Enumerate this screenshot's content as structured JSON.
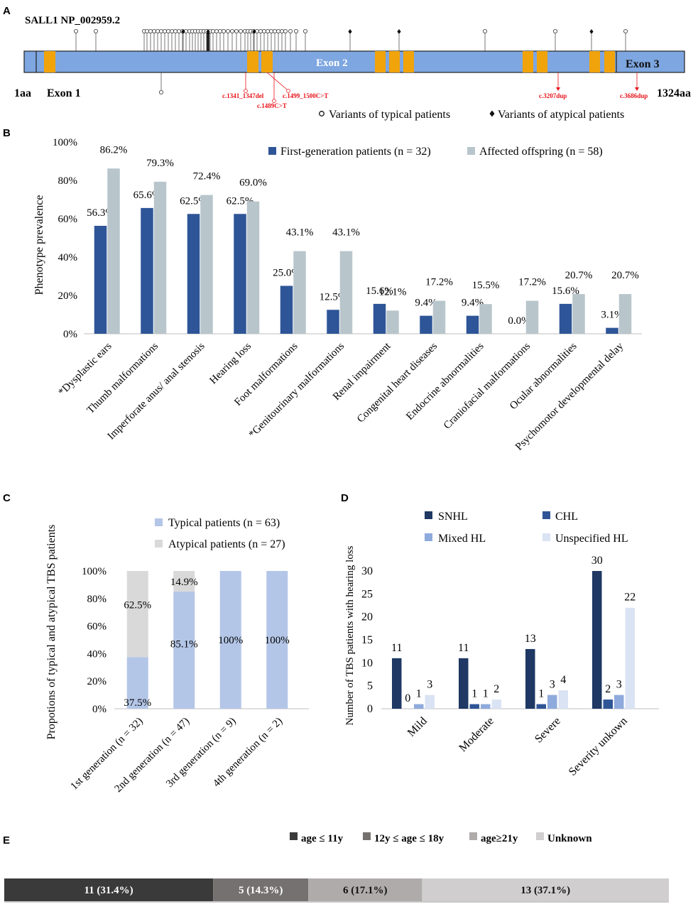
{
  "panels": {
    "a": {
      "letter": "A",
      "gene_label": "SALL1  NP_002959.2",
      "start_label": "1aa",
      "end_label": "1324aa",
      "exon_labels": [
        "Exon 1",
        "Exon 2",
        "Exon 3"
      ],
      "mutation_labels": [
        "c.1341_1347del",
        "c.1489C>T",
        "c.1499_1500C>T",
        "c.3207dup",
        "c.3686dup"
      ],
      "legend": {
        "typical": "Variants of typical patients",
        "atypical": "Variants of atypical patients"
      },
      "colors": {
        "protein": "#7ea6e0",
        "domain": "#f0a30a",
        "mutation": "#e8131a"
      }
    },
    "b": {
      "letter": "B",
      "ylabel": "Phenotype prevalence",
      "ticks": [
        "0%",
        "20%",
        "40%",
        "60%",
        "80%",
        "100%"
      ],
      "legend": [
        "First-generation patients (n = 32)",
        "Affected offspring (n = 58)"
      ],
      "colors": [
        "#2e5597",
        "#b8c6cc"
      ]
    },
    "c": {
      "letter": "C",
      "ylabel": "Propotions of typical and atypical TBS patients",
      "ticks": [
        "0%",
        "20%",
        "40%",
        "60%",
        "80%",
        "100%"
      ],
      "legend": [
        "Typical patients (n = 63)",
        "Atypical patients (n = 27)"
      ],
      "colors": [
        "#b4c6e7",
        "#d9d9d9"
      ]
    },
    "d": {
      "letter": "D",
      "ylabel": "Number of TBS patients with  hearing loss",
      "ticks": [
        "0",
        "5",
        "10",
        "15",
        "20",
        "25",
        "30"
      ],
      "legend": [
        "SNHL",
        "CHL",
        "Mixed HL",
        "Unspecified HL"
      ],
      "colors": [
        "#1f3864",
        "#2f5597",
        "#8faadc",
        "#dae3f3"
      ]
    },
    "e": {
      "letter": "E",
      "legend": [
        "age ≤ 11y",
        "12y ≤ age ≤ 18y",
        "age≥21y",
        "Unknown"
      ],
      "colors": [
        "#3a3a3a",
        "#767171",
        "#afabab",
        "#d0cece"
      ]
    }
  },
  "chart_data": [
    {
      "type": "bar",
      "categories": [
        "*Dysplastic ears",
        "Thumb malformations",
        "Imperforate anus/ anal stenosis",
        "Hearing loss",
        "Foot malformations",
        "*Genitourinary malformations",
        "Renal impairment",
        "Congenital heart diseases",
        "Endocrine abnormalities",
        "Craniofacial malformations",
        "Ocular abnormalities",
        "Psychomotor developmental delay"
      ],
      "series": [
        {
          "name": "First-generation patients (n = 32)",
          "values": [
            56.3,
            65.6,
            62.5,
            62.5,
            25.0,
            12.5,
            15.6,
            9.4,
            9.4,
            0.0,
            15.6,
            3.1
          ],
          "labels": [
            "56.3%",
            "65.6%",
            "62.5%",
            "62.5%",
            "25.0%",
            "12.5%",
            "15.6%",
            "9.4%",
            "9.4%",
            "0.0%",
            "15.6%",
            "3.1%"
          ]
        },
        {
          "name": "Affected offspring (n = 58)",
          "values": [
            86.2,
            79.3,
            72.4,
            69.0,
            43.1,
            43.1,
            12.1,
            17.2,
            15.5,
            17.2,
            20.7,
            20.7
          ],
          "labels": [
            "86.2%",
            "79.3%",
            "72.4%",
            "69.0%",
            "43.1%",
            "43.1%",
            "12.1%",
            "17.2%",
            "15.5%",
            "17.2%",
            "20.7%",
            "20.7%"
          ]
        }
      ],
      "ylabel": "Phenotype prevalence",
      "ylim": [
        0,
        100
      ],
      "legend": "top"
    },
    {
      "type": "bar",
      "stacked": true,
      "categories": [
        "1st generation (n = 32)",
        "2nd generation (n = 47)",
        "3rd generation (n = 9)",
        "4th generation (n = 2)"
      ],
      "series": [
        {
          "name": "Typical patients (n = 63)",
          "values": [
            37.5,
            85.1,
            100,
            100
          ],
          "labels": [
            "37.5%",
            "85.1%",
            "100%",
            "100%"
          ]
        },
        {
          "name": "Atypical patients (n = 27)",
          "values": [
            62.5,
            14.9,
            0,
            0
          ],
          "labels": [
            "62.5%",
            "14.9%",
            "",
            ""
          ]
        }
      ],
      "ylabel": "Propotions of typical and atypical TBS patients",
      "ylim": [
        0,
        100
      ],
      "legend": "top"
    },
    {
      "type": "bar",
      "categories": [
        "Mild",
        "Moderate",
        "Severe",
        "Severity unkown"
      ],
      "series": [
        {
          "name": "SNHL",
          "values": [
            11,
            11,
            13,
            30
          ],
          "labels": [
            "11",
            "11",
            "13",
            "30"
          ]
        },
        {
          "name": "CHL",
          "values": [
            0,
            1,
            1,
            2
          ],
          "labels": [
            "0",
            "1",
            "1",
            "2"
          ]
        },
        {
          "name": "Mixed HL",
          "values": [
            1,
            1,
            3,
            3
          ],
          "labels": [
            "1",
            "1",
            "3",
            "3"
          ]
        },
        {
          "name": "Unspecified HL",
          "values": [
            3,
            2,
            4,
            22
          ],
          "labels": [
            "3",
            "2",
            "4",
            "22"
          ]
        }
      ],
      "ylabel": "Number of TBS patients with  hearing loss",
      "ylim": [
        0,
        30
      ],
      "legend": "top"
    },
    {
      "type": "bar",
      "stacked": true,
      "orientation": "horizontal",
      "segments": [
        {
          "name": "age ≤ 11y",
          "value": 11,
          "percent": 31.4,
          "label": "11 (31.4%)"
        },
        {
          "name": "12y ≤ age ≤ 18y",
          "value": 5,
          "percent": 14.3,
          "label": "5 (14.3%)"
        },
        {
          "name": "age≥21y",
          "value": 6,
          "percent": 17.1,
          "label": "6 (17.1%)"
        },
        {
          "name": "Unknown",
          "value": 13,
          "percent": 37.1,
          "label": "13 (37.1%)"
        }
      ],
      "legend": "top"
    }
  ]
}
